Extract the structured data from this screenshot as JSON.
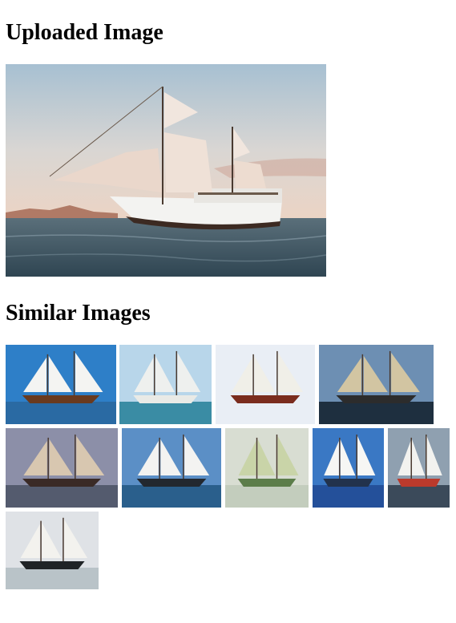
{
  "page": {
    "uploaded_heading": "Uploaded Image",
    "similar_heading": "Similar Images"
  },
  "uploaded_image": {
    "subject": "schooner-sailing-at-sunset",
    "colors": {
      "sky_top": "#a9c2d3",
      "sky_bottom": "#e8d3c7",
      "sea": "#3f5664",
      "sails": "#f1e6de",
      "hull": "#f4f4f2"
    }
  },
  "similar_images": [
    {
      "subject": "schooner-blue-sky",
      "sky": "#2e7fc8",
      "sea": "#2a6aa3",
      "sail": "#f4f4f2",
      "hull": "#6a3a1e"
    },
    {
      "subject": "schooner-hazy-distance",
      "sky": "#b8d6ea",
      "sea": "#3a8ca4",
      "sail": "#eef0ee",
      "hull": "#e9eae6"
    },
    {
      "subject": "schooner-with-flag",
      "sky": "#e9eef5",
      "sea": "#e9eef5",
      "sail": "#f0efe8",
      "hull": "#7a2c1e"
    },
    {
      "subject": "schooner-tan-sails",
      "sky": "#6d8fb3",
      "sea": "#1e2f3f",
      "sail": "#d2c5a2",
      "hull": "#2c2c2c"
    },
    {
      "subject": "schooner-cloudy-sky",
      "sky": "#8c8fa8",
      "sea": "#545b6e",
      "sail": "#d8c7b0",
      "hull": "#3a2a26"
    },
    {
      "subject": "schooner-white-sails",
      "sky": "#5b8fc6",
      "sea": "#2a5f8c",
      "sail": "#f3f3f1",
      "hull": "#22282f"
    },
    {
      "subject": "schooner-green-hull",
      "sky": "#d8ddd2",
      "sea": "#c3cdbd",
      "sail": "#c9d4a8",
      "hull": "#5c7d4a"
    },
    {
      "subject": "schooner-deep-blue",
      "sky": "#3a78c4",
      "sea": "#24509a",
      "sail": "#f6f6f4",
      "hull": "#22324c"
    },
    {
      "subject": "schooner-rough-sea",
      "sky": "#8fa0b0",
      "sea": "#3b4a5a",
      "sail": "#f2f2ef",
      "hull": "#bb3a2c"
    },
    {
      "subject": "schooner-red-ensign",
      "sky": "#dfe2e6",
      "sea": "#b9c3c8",
      "sail": "#f3f2ee",
      "hull": "#1f2326"
    }
  ]
}
